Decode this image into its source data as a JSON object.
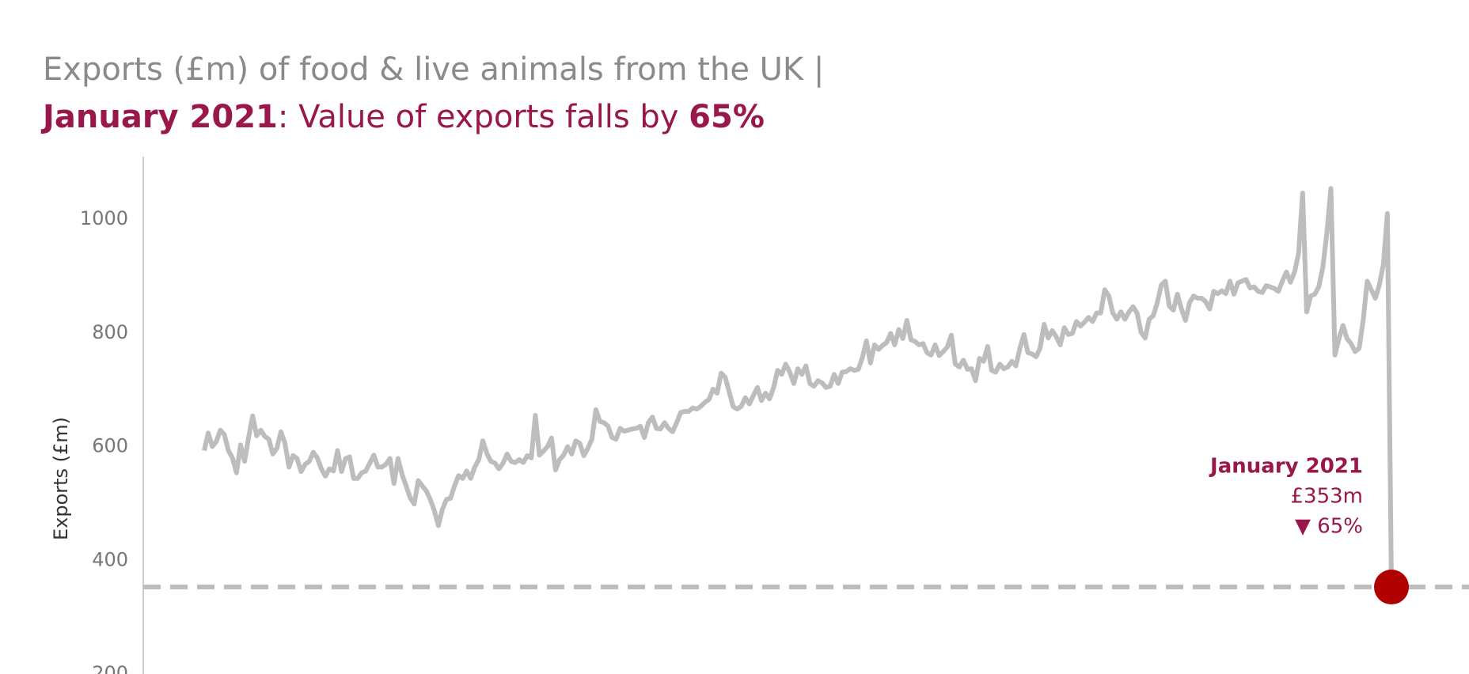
{
  "chart_data": {
    "type": "line",
    "title": "Exports (£m) of food & live animals from the UK |",
    "subtitle_parts": [
      "January 2021",
      ": Value of exports falls by ",
      "65%"
    ],
    "y_label": "Exports (£m)",
    "ylim": [
      200,
      1110
    ],
    "yticks": [
      200,
      400,
      600,
      800,
      1000
    ],
    "series": [
      {
        "name": "Exports",
        "color": "#bdbdbd",
        "values": [
          593,
          624,
          600,
          609,
          629,
          621,
          593,
          580,
          554,
          603,
          574,
          616,
          654,
          619,
          629,
          618,
          613,
          587,
          597,
          626,
          606,
          564,
          584,
          579,
          556,
          569,
          574,
          590,
          580,
          561,
          548,
          561,
          557,
          593,
          556,
          579,
          582,
          544,
          544,
          554,
          557,
          571,
          585,
          564,
          564,
          569,
          579,
          535,
          579,
          551,
          531,
          510,
          499,
          540,
          531,
          522,
          507,
          487,
          461,
          490,
          507,
          509,
          531,
          549,
          544,
          557,
          544,
          564,
          577,
          610,
          588,
          574,
          571,
          561,
          571,
          587,
          574,
          572,
          577,
          572,
          584,
          580,
          655,
          585,
          592,
          600,
          615,
          559,
          577,
          585,
          600,
          587,
          610,
          606,
          584,
          597,
          613,
          665,
          644,
          642,
          636,
          616,
          613,
          632,
          627,
          629,
          631,
          632,
          636,
          616,
          642,
          652,
          632,
          631,
          642,
          632,
          626,
          642,
          660,
          662,
          662,
          668,
          666,
          671,
          678,
          683,
          701,
          694,
          729,
          722,
          696,
          670,
          666,
          671,
          686,
          675,
          690,
          704,
          681,
          694,
          684,
          704,
          734,
          727,
          745,
          731,
          711,
          737,
          727,
          742,
          711,
          706,
          716,
          712,
          704,
          706,
          727,
          711,
          731,
          732,
          737,
          734,
          736,
          757,
          786,
          747,
          779,
          771,
          778,
          783,
          799,
          779,
          806,
          790,
          822,
          788,
          785,
          779,
          781,
          765,
          761,
          779,
          760,
          767,
          775,
          796,
          745,
          740,
          752,
          736,
          737,
          716,
          755,
          750,
          776,
          734,
          731,
          745,
          737,
          740,
          750,
          742,
          773,
          797,
          765,
          763,
          758,
          773,
          815,
          791,
          804,
          793,
          779,
          809,
          797,
          799,
          820,
          812,
          819,
          827,
          820,
          835,
          835,
          876,
          865,
          835,
          824,
          837,
          824,
          837,
          846,
          835,
          801,
          791,
          824,
          830,
          853,
          884,
          891,
          847,
          840,
          868,
          842,
          822,
          853,
          865,
          861,
          861,
          855,
          842,
          873,
          869,
          874,
          869,
          891,
          868,
          888,
          891,
          894,
          879,
          881,
          873,
          871,
          883,
          881,
          878,
          873,
          891,
          907,
          889,
          907,
          940,
          1046,
          837,
          865,
          868,
          881,
          915,
          976,
          1054,
          761,
          790,
          813,
          790,
          781,
          767,
          773,
          822,
          891,
          876,
          861,
          884,
          920,
          1010,
          353
        ]
      }
    ],
    "highlight_color": "#b00000",
    "reference_line": true,
    "annotation": {
      "label": "January 2021",
      "value_label": "£353m",
      "change": "▼ 65%"
    }
  }
}
